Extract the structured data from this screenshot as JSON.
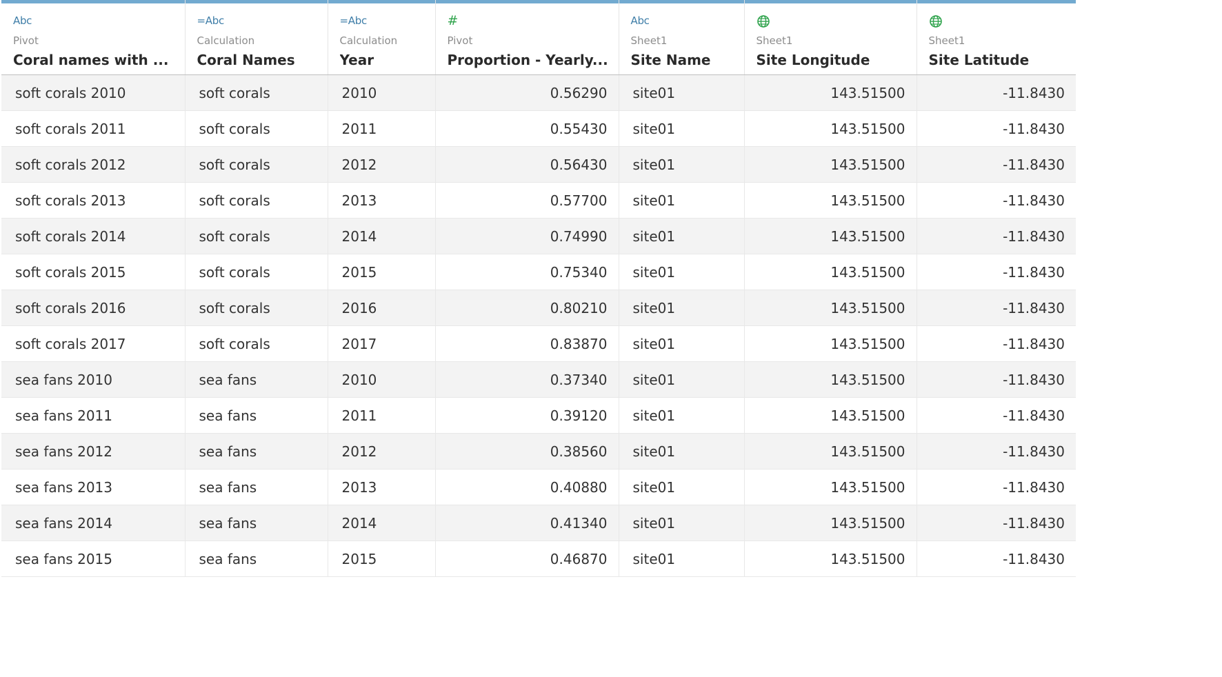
{
  "columns": [
    {
      "type_icon": "Abc",
      "source": "Pivot",
      "name": "Coral names with ..."
    },
    {
      "type_icon": "=Abc",
      "source": "Calculation",
      "name": "Coral Names"
    },
    {
      "type_icon": "=Abc",
      "source": "Calculation",
      "name": "Year"
    },
    {
      "type_icon": "#",
      "source": "Pivot",
      "name": "Proportion - Yearly..."
    },
    {
      "type_icon": "Abc",
      "source": "Sheet1",
      "name": "Site Name"
    },
    {
      "type_icon": "globe",
      "source": "Sheet1",
      "name": "Site Longitude"
    },
    {
      "type_icon": "globe",
      "source": "Sheet1",
      "name": "Site Latitude"
    }
  ],
  "rows": [
    [
      "soft corals 2010",
      "soft corals",
      "2010",
      "0.56290",
      "site01",
      "143.51500",
      "-11.8430"
    ],
    [
      "soft corals 2011",
      "soft corals",
      "2011",
      "0.55430",
      "site01",
      "143.51500",
      "-11.8430"
    ],
    [
      "soft corals 2012",
      "soft corals",
      "2012",
      "0.56430",
      "site01",
      "143.51500",
      "-11.8430"
    ],
    [
      "soft corals 2013",
      "soft corals",
      "2013",
      "0.57700",
      "site01",
      "143.51500",
      "-11.8430"
    ],
    [
      "soft corals 2014",
      "soft corals",
      "2014",
      "0.74990",
      "site01",
      "143.51500",
      "-11.8430"
    ],
    [
      "soft corals 2015",
      "soft corals",
      "2015",
      "0.75340",
      "site01",
      "143.51500",
      "-11.8430"
    ],
    [
      "soft corals 2016",
      "soft corals",
      "2016",
      "0.80210",
      "site01",
      "143.51500",
      "-11.8430"
    ],
    [
      "soft corals 2017",
      "soft corals",
      "2017",
      "0.83870",
      "site01",
      "143.51500",
      "-11.8430"
    ],
    [
      "sea fans 2010",
      "sea fans",
      "2010",
      "0.37340",
      "site01",
      "143.51500",
      "-11.8430"
    ],
    [
      "sea fans 2011",
      "sea fans",
      "2011",
      "0.39120",
      "site01",
      "143.51500",
      "-11.8430"
    ],
    [
      "sea fans 2012",
      "sea fans",
      "2012",
      "0.38560",
      "site01",
      "143.51500",
      "-11.8430"
    ],
    [
      "sea fans 2013",
      "sea fans",
      "2013",
      "0.40880",
      "site01",
      "143.51500",
      "-11.8430"
    ],
    [
      "sea fans 2014",
      "sea fans",
      "2014",
      "0.41340",
      "site01",
      "143.51500",
      "-11.8430"
    ],
    [
      "sea fans 2015",
      "sea fans",
      "2015",
      "0.46870",
      "site01",
      "143.51500",
      "-11.8430"
    ]
  ],
  "colors": {
    "header_bar": "#72aad0",
    "string_icon": "#3f7ea8",
    "number_icon": "#2fa34c",
    "geo_icon": "#2fa34c",
    "row_alt": "#f3f3f3"
  }
}
